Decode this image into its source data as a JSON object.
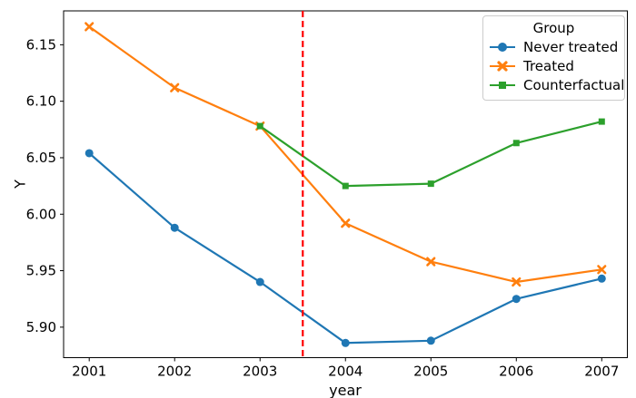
{
  "figure": {
    "xlabel": "year",
    "ylabel": "Y"
  },
  "chart_data": {
    "type": "line",
    "title": "",
    "xlabel": "year",
    "ylabel": "Y",
    "grid": false,
    "x": [
      2001,
      2002,
      2003,
      2004,
      2005,
      2006,
      2007
    ],
    "xtick_labels": [
      "2001",
      "2002",
      "2003",
      "2004",
      "2005",
      "2006",
      "2007"
    ],
    "yticks": [
      5.9,
      5.95,
      6.0,
      6.05,
      6.1,
      6.15
    ],
    "ytick_labels": [
      "5.90",
      "5.95",
      "6.00",
      "6.05",
      "6.10",
      "6.15"
    ],
    "xlim": [
      2000.7,
      2007.3
    ],
    "ylim": [
      5.873,
      6.18
    ],
    "legend": {
      "title": "Group",
      "position": "upper right"
    },
    "series": [
      {
        "name": "Never treated",
        "color": "#1f77b4",
        "marker": "circle",
        "values": [
          6.054,
          5.988,
          5.94,
          5.886,
          5.888,
          5.925,
          5.943
        ]
      },
      {
        "name": "Treated",
        "color": "#ff7f0e",
        "marker": "x",
        "values": [
          6.166,
          6.112,
          6.078,
          5.992,
          5.958,
          5.94,
          5.951
        ]
      },
      {
        "name": "Counterfactual",
        "color": "#2ca02c",
        "marker": "square",
        "values": [
          null,
          null,
          6.078,
          6.025,
          6.027,
          6.063,
          6.082
        ]
      }
    ],
    "vline": {
      "x": 2003.5,
      "color": "#ff0000",
      "style": "dashed"
    }
  }
}
